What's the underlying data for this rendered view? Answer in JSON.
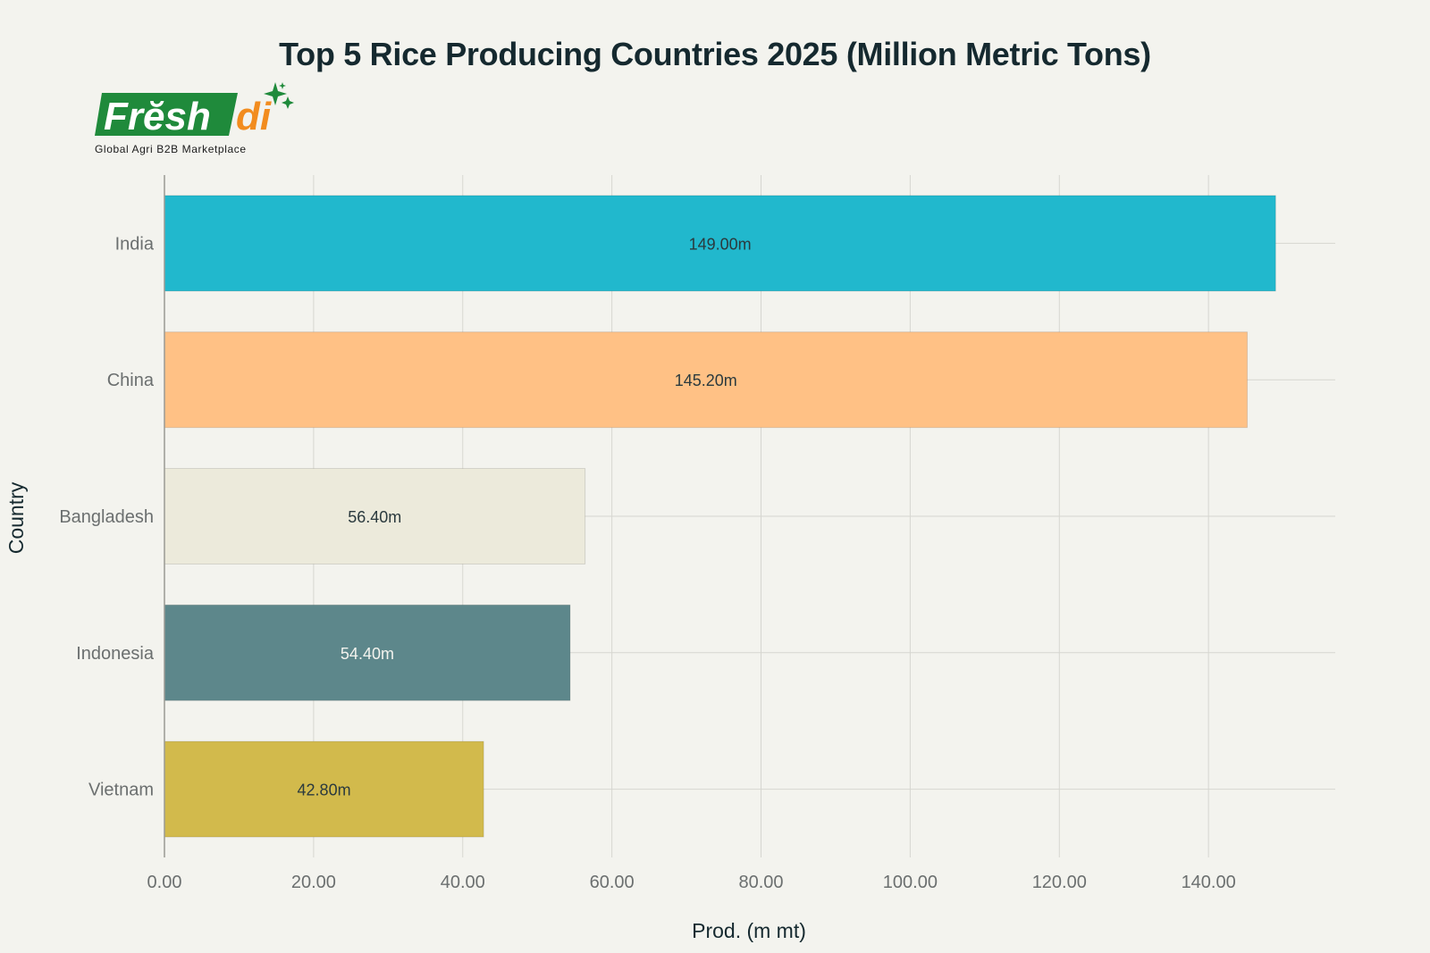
{
  "chart_data": {
    "type": "bar",
    "orientation": "horizontal",
    "title": "Top 5 Rice Producing Countries 2025 (Million Metric Tons)",
    "xlabel": "Prod. (m mt)",
    "ylabel": "Country",
    "xlim": [
      0,
      157
    ],
    "xticks": [
      0,
      20,
      40,
      60,
      80,
      100,
      120,
      140
    ],
    "xtick_labels": [
      "0.00",
      "20.00",
      "40.00",
      "60.00",
      "80.00",
      "100.00",
      "120.00",
      "140.00"
    ],
    "grid": true,
    "categories": [
      "India",
      "China",
      "Bangladesh",
      "Indonesia",
      "Vietnam"
    ],
    "values": [
      149.0,
      145.2,
      56.4,
      54.4,
      42.8
    ],
    "data_labels": [
      "149.00m",
      "145.20m",
      "56.40m",
      "54.40m",
      "42.80m"
    ],
    "colors": [
      "#21b8cd",
      "#ffc185",
      "#eceadb",
      "#5d878b",
      "#d2ba4c"
    ],
    "label_colors": [
      "#2b3a3e",
      "#2b3a3e",
      "#2b3a3e",
      "#f3f3ee",
      "#2b3a3e"
    ]
  },
  "logo": {
    "brand": "Freshdi",
    "tagline": "Global Agri B2B Marketplace",
    "green": "#1f8a3b",
    "orange": "#f28c1e"
  }
}
